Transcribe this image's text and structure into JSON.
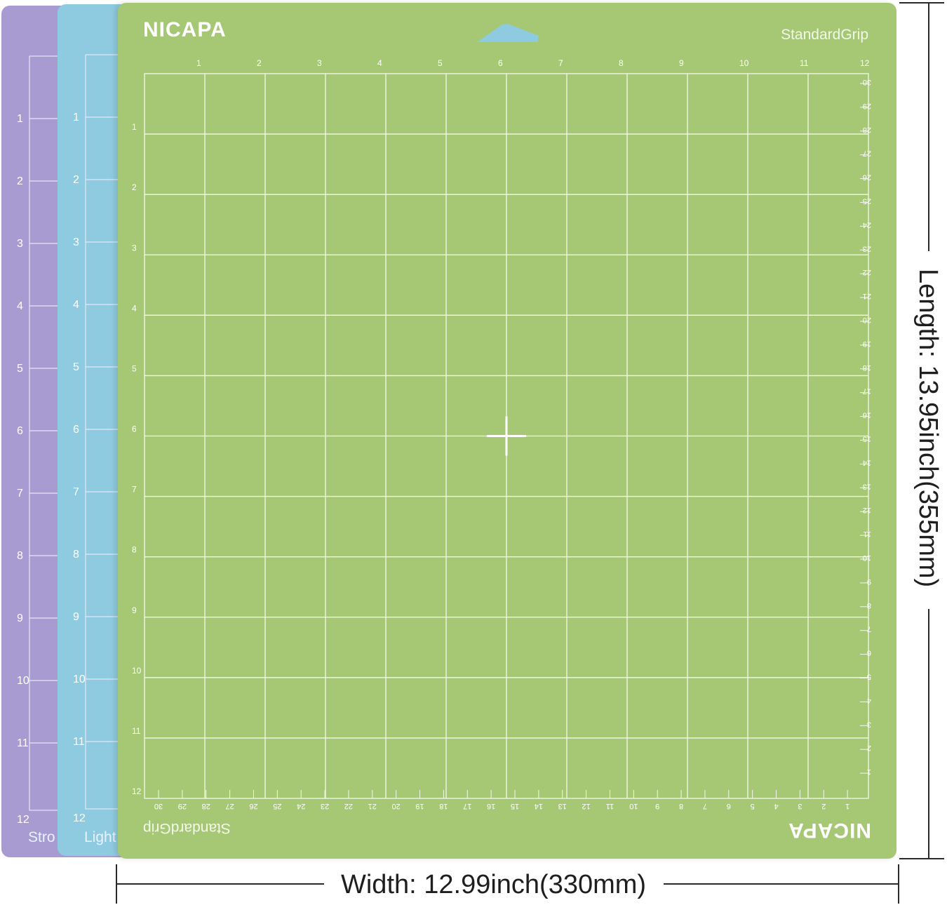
{
  "mats": [
    {
      "name": "Strong",
      "grip_label_visible": "Stro",
      "color": "#a79bd2",
      "row_labels": [
        "1",
        "2",
        "3",
        "4",
        "5",
        "6",
        "7",
        "8",
        "9",
        "10",
        "11",
        "12"
      ]
    },
    {
      "name": "Light",
      "grip_label_visible": "Light",
      "color": "#8fcbe0",
      "row_labels": [
        "1",
        "2",
        "3",
        "4",
        "5",
        "6",
        "7",
        "8",
        "9",
        "10",
        "11",
        "12"
      ]
    },
    {
      "name": "StandardGrip",
      "color": "#a6c875",
      "brand": "NICAPA",
      "grip_label": "StandardGrip",
      "col_labels": [
        "1",
        "2",
        "3",
        "4",
        "5",
        "6",
        "7",
        "8",
        "9",
        "10",
        "11",
        "12"
      ],
      "row_labels": [
        "1",
        "2",
        "3",
        "4",
        "5",
        "6",
        "7",
        "8",
        "9",
        "10",
        "11",
        "12"
      ],
      "cm_right": [
        "30",
        "29",
        "28",
        "27",
        "26",
        "25",
        "24",
        "23",
        "22",
        "21",
        "20",
        "19",
        "18",
        "17",
        "16",
        "15",
        "14",
        "13",
        "12",
        "11",
        "10",
        "9",
        "8",
        "7",
        "6",
        "5",
        "4",
        "3",
        "2",
        "1"
      ],
      "cm_bottom": [
        "30",
        "29",
        "28",
        "27",
        "26",
        "25",
        "24",
        "23",
        "22",
        "21",
        "20",
        "19",
        "18",
        "17",
        "16",
        "15",
        "14",
        "13",
        "12",
        "11",
        "10",
        "9",
        "8",
        "7",
        "6",
        "5",
        "4",
        "3",
        "2",
        "1"
      ]
    }
  ],
  "dimensions": {
    "width_label": "Width: 12.99inch(330mm)",
    "length_label": "Length: 13.95inch(355mm)"
  }
}
